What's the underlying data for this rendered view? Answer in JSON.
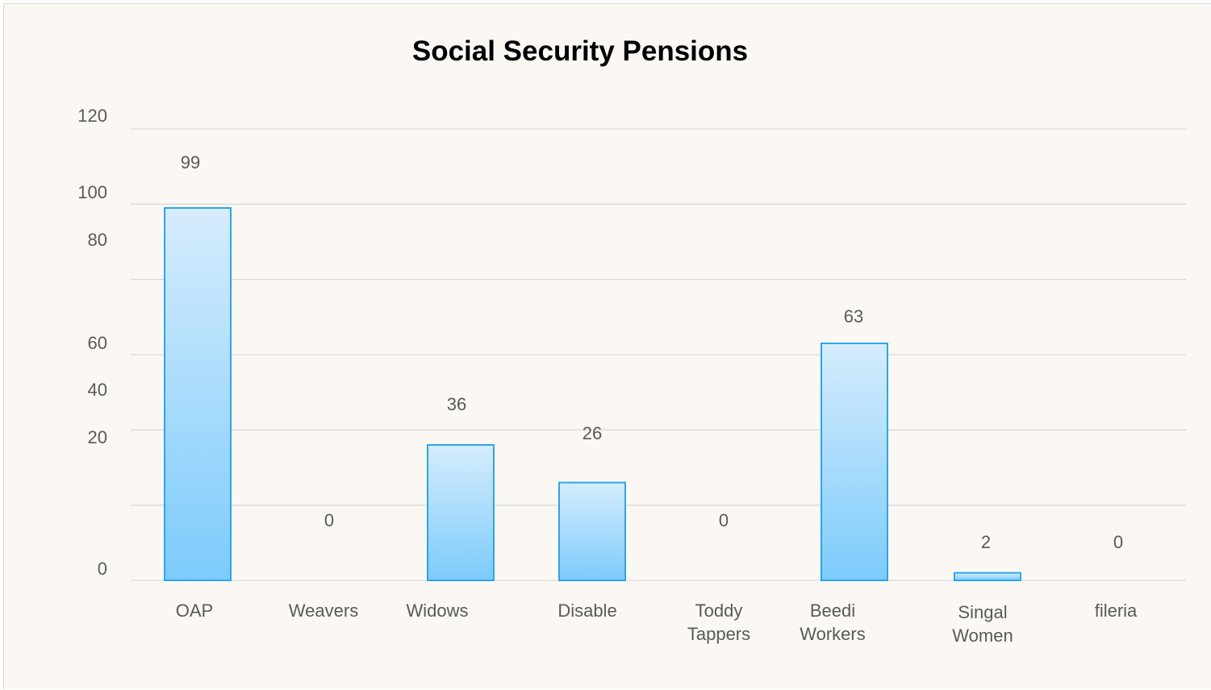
{
  "chart_data": {
    "type": "bar",
    "title": "Social Security Pensions",
    "xlabel": "",
    "ylabel": "",
    "categories": [
      "OAP",
      "Weavers",
      "Widows",
      "Disable",
      "Toddy Tappers",
      "Beedi Workers",
      "Singal Women",
      "fileria"
    ],
    "values": [
      99,
      0,
      36,
      26,
      0,
      63,
      2,
      0
    ],
    "y_tick_labels": [
      "120",
      "100",
      "80",
      "60",
      "40",
      "20",
      "0"
    ],
    "ylim": [
      0,
      120
    ],
    "grid": true,
    "legend": "none",
    "colors": {
      "bar_top": "#d6ecfd",
      "bar_bottom": "#7ccbfb",
      "bar_border": "#2aa6ec",
      "gridline": "#d9d9d9",
      "background": "#fbf8f4",
      "text": "#595959"
    }
  }
}
